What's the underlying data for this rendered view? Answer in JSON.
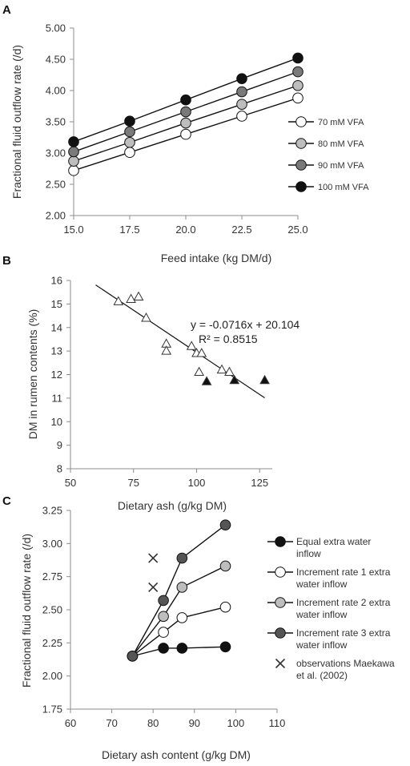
{
  "panels": {
    "A": {
      "letter": "A"
    },
    "B": {
      "letter": "B"
    },
    "C": {
      "letter": "C"
    }
  },
  "chart_data": [
    {
      "panel": "A",
      "type": "line",
      "xlabel": "Feed intake (kg DM/d)",
      "ylabel": "Fractional fluid outflow rate (/d)",
      "xlim": [
        15.0,
        25.0
      ],
      "ylim": [
        2.0,
        5.0
      ],
      "x_ticks": [
        "15.0",
        "17.5",
        "20.0",
        "22.5",
        "25.0"
      ],
      "y_ticks": [
        "2.00",
        "2.50",
        "3.00",
        "3.50",
        "4.00",
        "4.50",
        "5.00"
      ],
      "grid": false,
      "legend_position": "right",
      "x": [
        15.0,
        17.5,
        20.0,
        22.5,
        25.0
      ],
      "series": [
        {
          "name": "70 mM VFA",
          "marker_color": "#ffffff",
          "values": [
            2.72,
            3.01,
            3.3,
            3.59,
            3.88
          ]
        },
        {
          "name": "80 mM VFA",
          "marker_color": "#bdbdbd",
          "values": [
            2.87,
            3.17,
            3.48,
            3.78,
            4.08
          ]
        },
        {
          "name": "90 mM VFA",
          "marker_color": "#7a7a7a",
          "values": [
            3.02,
            3.34,
            3.66,
            3.98,
            4.3
          ]
        },
        {
          "name": "100 mM VFA",
          "marker_color": "#111111",
          "values": [
            3.18,
            3.51,
            3.85,
            4.19,
            4.52
          ]
        }
      ]
    },
    {
      "panel": "B",
      "type": "scatter",
      "xlabel": "Dietary ash (g/kg DM)",
      "ylabel": "DM in rumen contents  (%)",
      "xlim": [
        50,
        130
      ],
      "ylim": [
        8,
        16
      ],
      "x_ticks": [
        "50",
        "75",
        "100",
        "125"
      ],
      "y_ticks": [
        "8",
        "9",
        "10",
        "11",
        "12",
        "13",
        "14",
        "15",
        "16"
      ],
      "grid": false,
      "equation": "y = -0.0716x + 20.104",
      "r_squared": "R² = 0.8515",
      "trendline": {
        "slope": -0.0716,
        "intercept": 20.104,
        "x_range": [
          60,
          127
        ]
      },
      "series": [
        {
          "marker": "open-triangle",
          "points": [
            [
              69,
              15.1
            ],
            [
              74,
              15.2
            ],
            [
              77,
              15.3
            ],
            [
              80,
              14.4
            ],
            [
              88,
              13.3
            ],
            [
              88,
              13.0
            ],
            [
              98,
              13.2
            ],
            [
              100,
              12.9
            ],
            [
              102,
              12.9
            ],
            [
              101,
              12.1
            ],
            [
              110,
              12.2
            ],
            [
              113,
              12.1
            ]
          ]
        },
        {
          "marker": "filled-triangle",
          "points": [
            [
              104,
              11.7
            ],
            [
              115,
              11.75
            ],
            [
              127,
              11.75
            ]
          ]
        }
      ]
    },
    {
      "panel": "C",
      "type": "line",
      "xlabel": "Dietary ash content (g/kg DM)",
      "ylabel": "Fractional fluid outflow rate (/d)",
      "xlim": [
        60,
        110
      ],
      "ylim": [
        1.75,
        3.25
      ],
      "x_ticks": [
        "60",
        "70",
        "80",
        "90",
        "100",
        "110"
      ],
      "y_ticks": [
        "1.75",
        "2.00",
        "2.25",
        "2.50",
        "2.75",
        "3.00",
        "3.25"
      ],
      "grid": false,
      "legend_position": "right",
      "x": [
        75,
        82.5,
        87,
        97.5
      ],
      "series": [
        {
          "name": "Equal extra water inflow",
          "legend_lines": [
            "Equal extra water",
            "inflow"
          ],
          "marker_color": "#111111",
          "values": [
            2.15,
            2.21,
            2.21,
            2.22
          ]
        },
        {
          "name": "Increment rate 1 extra water inflow",
          "legend_lines": [
            "Increment rate 1 extra",
            "water inflow"
          ],
          "marker_color": "#ffffff",
          "values": [
            2.15,
            2.33,
            2.44,
            2.52
          ]
        },
        {
          "name": "Increment rate 2 extra water inflow",
          "legend_lines": [
            "Increment rate 2 extra",
            "water inflow"
          ],
          "marker_color": "#bdbdbd",
          "values": [
            2.15,
            2.45,
            2.67,
            2.83
          ]
        },
        {
          "name": "Increment rate 3 extra water inflow",
          "legend_lines": [
            "Increment rate 3 extra",
            "water inflow"
          ],
          "marker_color": "#555555",
          "values": [
            2.15,
            2.57,
            2.89,
            3.14
          ]
        }
      ],
      "observations": {
        "name": "observations Maekawa et al. (2002)",
        "legend_lines": [
          "observations Maekawa",
          "et al. (2002)"
        ],
        "marker": "x",
        "points": [
          [
            80,
            2.89
          ],
          [
            80,
            2.67
          ]
        ]
      }
    }
  ]
}
